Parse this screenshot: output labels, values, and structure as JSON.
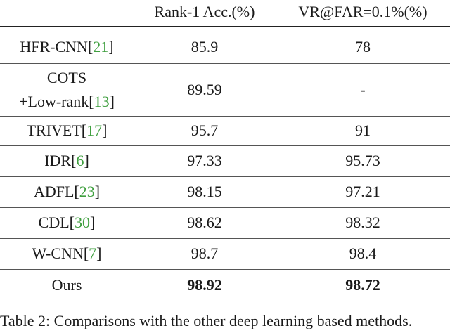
{
  "table": {
    "header": [
      "Rank-1 Acc.(%)",
      "VR@FAR=0.1%(%)"
    ],
    "rows": [
      {
        "method": [
          "HFR-CNN"
        ],
        "cite": "21",
        "rank1": "85.9",
        "vr": "78"
      },
      {
        "method": [
          "COTS",
          "+Low-rank"
        ],
        "cite": "13",
        "rank1": "89.59",
        "vr": "-"
      },
      {
        "method": [
          "TRIVET"
        ],
        "cite": "17",
        "rank1": "95.7",
        "vr": "91"
      },
      {
        "method": [
          "IDR"
        ],
        "cite": "6",
        "rank1": "97.33",
        "vr": "95.73"
      },
      {
        "method": [
          "ADFL"
        ],
        "cite": "23",
        "rank1": "98.15",
        "vr": "97.21"
      },
      {
        "method": [
          "CDL"
        ],
        "cite": "30",
        "rank1": "98.62",
        "vr": "98.32"
      },
      {
        "method": [
          "W-CNN"
        ],
        "cite": "7",
        "rank1": "98.7",
        "vr": "98.4"
      },
      {
        "method": [
          "Ours"
        ],
        "rank1": "98.92",
        "vr": "98.72",
        "bold": true
      }
    ],
    "cite_color": "#3f9f3f"
  },
  "caption": "Table 2: Comparisons with the other deep learning based methods."
}
